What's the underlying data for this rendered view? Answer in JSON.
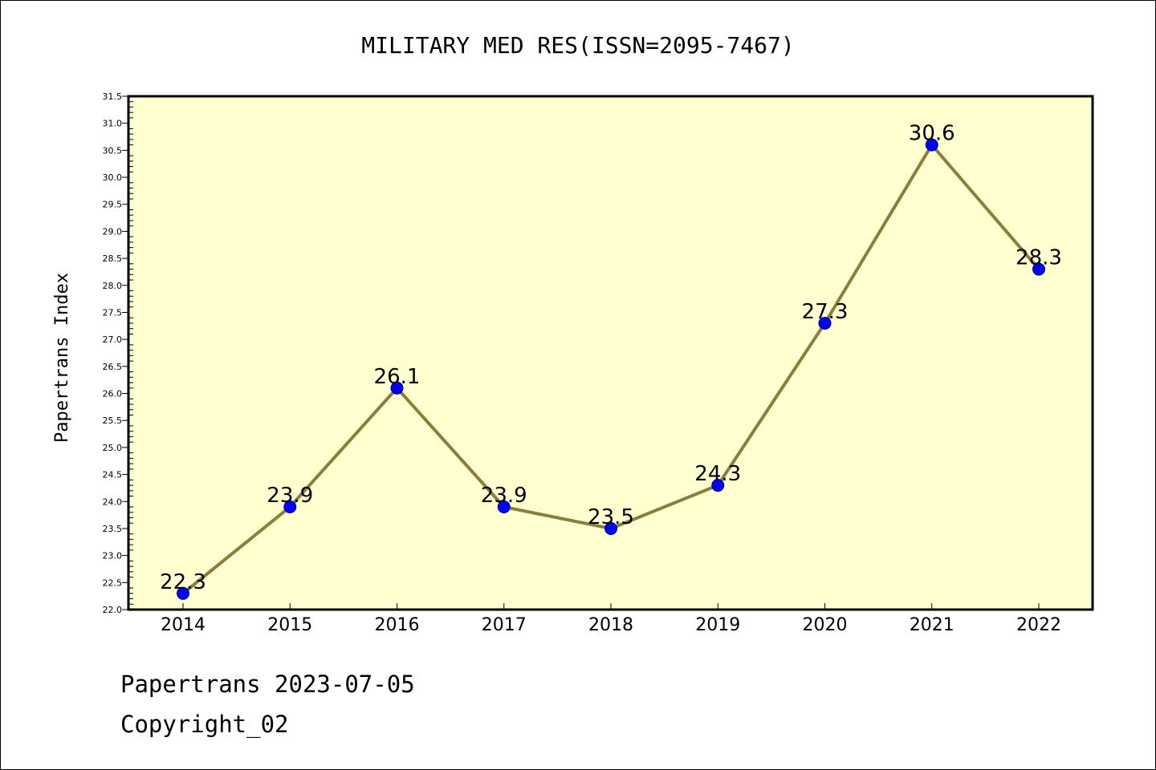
{
  "chart_data": {
    "type": "line",
    "title": "MILITARY MED RES(ISSN=2095-7467)",
    "xlabel": "",
    "ylabel": "Papertrans Index",
    "categories": [
      "2014",
      "2015",
      "2016",
      "2017",
      "2018",
      "2019",
      "2020",
      "2021",
      "2022"
    ],
    "values": [
      22.3,
      23.9,
      26.1,
      23.9,
      23.5,
      24.3,
      27.3,
      30.6,
      28.3
    ],
    "data_labels": [
      "22.3",
      "23.9",
      "26.1",
      "23.9",
      "23.5",
      "24.3",
      "27.3",
      "30.6",
      "28.3"
    ],
    "ylim": [
      22.0,
      31.5
    ],
    "yticks": [
      "22.0",
      "22.5",
      "23.0",
      "23.5",
      "24.0",
      "24.5",
      "25.0",
      "25.5",
      "26.0",
      "26.5",
      "27.0",
      "27.5",
      "28.0",
      "28.5",
      "29.0",
      "29.5",
      "30.0",
      "30.5",
      "31.0",
      "31.5"
    ],
    "grid": false,
    "legend": "none",
    "colors": {
      "plot_background": "#ffffd0",
      "line": "#8b7d3a",
      "marker": "#0000ff"
    }
  },
  "footer": {
    "date_text": "Papertrans 2023-07-05",
    "copyright_text": "Copyright_02"
  }
}
